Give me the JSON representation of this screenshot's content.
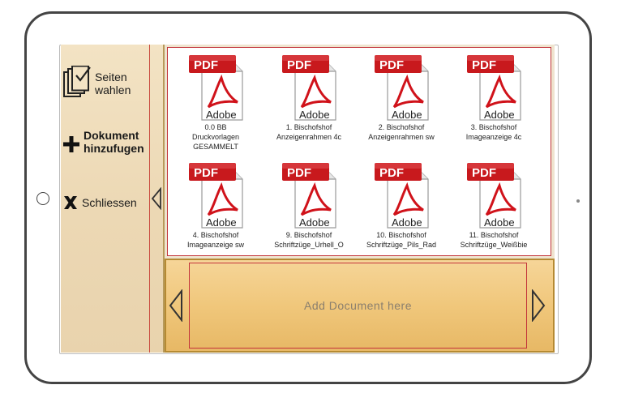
{
  "sidebar": {
    "items": [
      {
        "label": "Seiten\nwahlen",
        "icon": "select-pages-icon"
      },
      {
        "label": "Dokument\nhinzufugen",
        "icon": "plus-icon"
      },
      {
        "label": "Schliessen",
        "icon": "close-x-icon"
      }
    ],
    "collapse_icon": "chevron-left-outline-icon"
  },
  "files": [
    {
      "badge": "PDF",
      "brand": "Adobe",
      "name": "0.0 BB\nDruckvorlagen\nGESAMMELT"
    },
    {
      "badge": "PDF",
      "brand": "Adobe",
      "name": "1. Bischofshof\nAnzeigenrahmen 4c"
    },
    {
      "badge": "PDF",
      "brand": "Adobe",
      "name": "2. Bischofshof\nAnzeigenrahmen sw"
    },
    {
      "badge": "PDF",
      "brand": "Adobe",
      "name": "3. Bischofshof\nImageanzeige 4c"
    },
    {
      "badge": "PDF",
      "brand": "Adobe",
      "name": "4. Bischofshof\nImageanzeige sw"
    },
    {
      "badge": "PDF",
      "brand": "Adobe",
      "name": "9. Bischofshof\nSchriftzüge_Urhell_O"
    },
    {
      "badge": "PDF",
      "brand": "Adobe",
      "name": "10. Bischofshof\nSchriftzüge_Pils_Rad"
    },
    {
      "badge": "PDF",
      "brand": "Adobe",
      "name": "11. Bischofshof\nSchriftzüge_Weißbie"
    }
  ],
  "dropzone": {
    "label": "Add Document here"
  },
  "nav": {
    "prev_icon": "chevron-left-outline-icon",
    "next_icon": "chevron-right-outline-icon"
  },
  "colors": {
    "accent_red": "#c3343a",
    "panel_gold": "#f0c77b",
    "sidebar_beige": "#ecd8b4"
  }
}
